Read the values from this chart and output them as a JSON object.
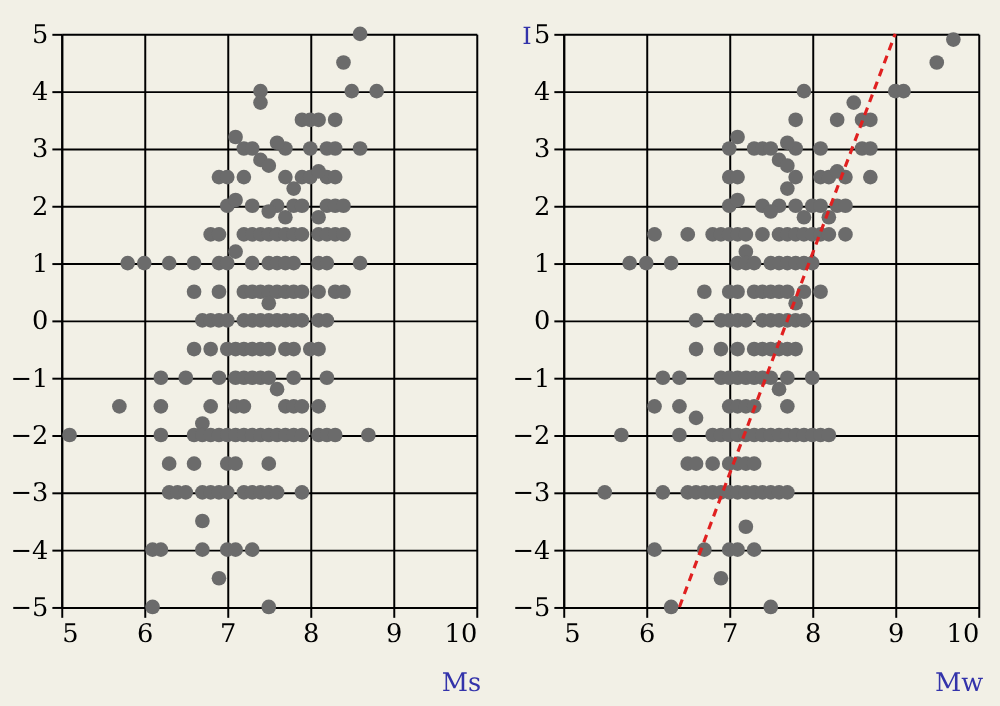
{
  "chart_data": [
    {
      "type": "scatter",
      "xlabel": "Ms",
      "xlim": [
        5,
        10
      ],
      "xticks": [
        5,
        6,
        7,
        8,
        9,
        10
      ],
      "ylim": [
        -5,
        5
      ],
      "yticks": [
        -5,
        -4,
        -3,
        -2,
        -1,
        0,
        1,
        2,
        3,
        4,
        5
      ],
      "grid": true,
      "marker": "circle",
      "series": [
        {
          "color": "#6b6b6b",
          "x": [
            8.6,
            8.4,
            7.4,
            8.5,
            8.8,
            7.4,
            7.9,
            8.0,
            8.1,
            8.3,
            7.1,
            7.2,
            7.3,
            7.7,
            8.0,
            8.2,
            8.3,
            8.6,
            7.6,
            7.4,
            7.5,
            6.9,
            7.0,
            7.2,
            7.7,
            7.9,
            8.0,
            8.2,
            8.3,
            8.1,
            7.8,
            7.0,
            7.3,
            7.6,
            7.8,
            7.9,
            8.2,
            8.3,
            8.4,
            7.1,
            7.5,
            7.7,
            8.1,
            6.8,
            6.9,
            7.2,
            7.3,
            7.4,
            7.5,
            7.6,
            7.7,
            7.8,
            7.9,
            8.1,
            8.2,
            8.3,
            8.4,
            7.1,
            5.8,
            6.0,
            6.3,
            6.6,
            6.9,
            7.0,
            7.3,
            7.5,
            7.6,
            7.7,
            7.8,
            8.1,
            8.2,
            8.6,
            6.6,
            6.9,
            7.2,
            7.3,
            7.4,
            7.5,
            7.6,
            7.7,
            7.8,
            7.9,
            8.1,
            8.3,
            8.4,
            7.5,
            6.7,
            6.8,
            6.9,
            7.0,
            7.2,
            7.3,
            7.4,
            7.5,
            7.6,
            7.7,
            7.8,
            7.9,
            8.1,
            8.2,
            6.6,
            6.8,
            7.0,
            7.1,
            7.2,
            7.3,
            7.4,
            7.5,
            7.7,
            7.8,
            8.0,
            8.1,
            6.2,
            6.5,
            6.9,
            7.1,
            7.2,
            7.3,
            7.4,
            7.5,
            7.8,
            8.2,
            7.6,
            5.7,
            6.2,
            6.8,
            7.1,
            7.2,
            7.7,
            7.8,
            7.9,
            8.1,
            6.7,
            5.1,
            6.2,
            6.6,
            6.7,
            6.8,
            6.9,
            7.0,
            7.1,
            7.2,
            7.3,
            7.4,
            7.5,
            7.6,
            7.7,
            7.8,
            7.9,
            8.1,
            8.2,
            8.3,
            8.7,
            6.3,
            6.6,
            7.0,
            7.1,
            7.5,
            6.3,
            6.4,
            6.5,
            6.7,
            6.8,
            6.9,
            7.0,
            7.2,
            7.3,
            7.4,
            7.5,
            7.6,
            7.9,
            6.7,
            6.1,
            6.2,
            6.7,
            7.0,
            7.1,
            7.3,
            6.9,
            6.1,
            7.5
          ],
          "values": [
            5,
            4.5,
            4,
            4,
            4,
            3.8,
            3.5,
            3.5,
            3.5,
            3.5,
            3.2,
            3,
            3,
            3,
            3,
            3,
            3,
            3,
            3.1,
            2.8,
            2.7,
            2.5,
            2.5,
            2.5,
            2.5,
            2.5,
            2.5,
            2.5,
            2.5,
            2.6,
            2.3,
            2,
            2,
            2,
            2,
            2,
            2,
            2,
            2,
            2.1,
            1.9,
            1.8,
            1.8,
            1.5,
            1.5,
            1.5,
            1.5,
            1.5,
            1.5,
            1.5,
            1.5,
            1.5,
            1.5,
            1.5,
            1.5,
            1.5,
            1.5,
            1.2,
            1,
            1,
            1,
            1,
            1,
            1,
            1,
            1,
            1,
            1,
            1,
            1,
            1,
            1,
            0.5,
            0.5,
            0.5,
            0.5,
            0.5,
            0.5,
            0.5,
            0.5,
            0.5,
            0.5,
            0.5,
            0.5,
            0.5,
            0.3,
            0,
            0,
            0,
            0,
            0,
            0,
            0,
            0,
            0,
            0,
            0,
            0,
            0,
            0,
            -0.5,
            -0.5,
            -0.5,
            -0.5,
            -0.5,
            -0.5,
            -0.5,
            -0.5,
            -0.5,
            -0.5,
            -0.5,
            -0.5,
            -1,
            -1,
            -1,
            -1,
            -1,
            -1,
            -1,
            -1,
            -1,
            -1,
            -1.2,
            -1.5,
            -1.5,
            -1.5,
            -1.5,
            -1.5,
            -1.5,
            -1.5,
            -1.5,
            -1.5,
            -1.8,
            -2,
            -2,
            -2,
            -2,
            -2,
            -2,
            -2,
            -2,
            -2,
            -2,
            -2,
            -2,
            -2,
            -2,
            -2,
            -2,
            -2,
            -2,
            -2,
            -2,
            -2.5,
            -2.5,
            -2.5,
            -2.5,
            -2.5,
            -3,
            -3,
            -3,
            -3,
            -3,
            -3,
            -3,
            -3,
            -3,
            -3,
            -3,
            -3,
            -3,
            -3.5,
            -4,
            -4,
            -4,
            -4,
            -4,
            -4,
            -4.5,
            -5,
            -5
          ]
        }
      ]
    },
    {
      "type": "scatter",
      "xlabel": "Mw",
      "ylabel": "I",
      "xlim": [
        5,
        10
      ],
      "xticks": [
        5,
        6,
        7,
        8,
        9,
        10
      ],
      "ylim": [
        -5,
        5
      ],
      "yticks": [
        -5,
        -4,
        -3,
        -2,
        -1,
        0,
        1,
        2,
        3,
        4,
        5
      ],
      "grid": true,
      "series": [
        {
          "color": "#6b6b6b",
          "marker": "circle",
          "x": [
            9.7,
            9.5,
            7.9,
            9.0,
            9.1,
            8.5,
            7.8,
            8.3,
            8.6,
            8.7,
            7.1,
            7.0,
            7.3,
            7.4,
            7.5,
            7.8,
            8.1,
            8.6,
            8.7,
            7.7,
            7.6,
            7.7,
            7.0,
            7.1,
            7.8,
            8.1,
            8.2,
            8.4,
            8.7,
            8.3,
            7.7,
            7.0,
            7.4,
            7.6,
            7.8,
            8.0,
            8.1,
            8.3,
            8.4,
            7.1,
            7.5,
            7.9,
            8.2,
            6.1,
            6.5,
            6.8,
            6.9,
            7.0,
            7.1,
            7.2,
            7.4,
            7.6,
            7.7,
            7.8,
            7.9,
            8.0,
            8.1,
            8.2,
            8.4,
            7.2,
            5.8,
            6.0,
            6.3,
            7.1,
            7.2,
            7.3,
            7.5,
            7.6,
            7.7,
            7.8,
            7.9,
            8.0,
            6.7,
            7.0,
            7.1,
            7.3,
            7.4,
            7.5,
            7.6,
            7.7,
            7.9,
            8.1,
            7.8,
            6.6,
            6.9,
            7.0,
            7.1,
            7.2,
            7.4,
            7.5,
            7.6,
            7.7,
            7.8,
            7.9,
            6.6,
            6.9,
            7.1,
            7.3,
            7.4,
            7.5,
            7.6,
            7.7,
            7.8,
            6.2,
            6.4,
            6.9,
            7.0,
            7.1,
            7.2,
            7.3,
            7.4,
            7.5,
            7.7,
            8.0,
            7.6,
            6.1,
            6.4,
            7.0,
            7.1,
            7.2,
            7.3,
            7.7,
            6.6,
            5.7,
            6.4,
            6.8,
            6.9,
            7.0,
            7.1,
            7.2,
            7.3,
            7.4,
            7.5,
            7.6,
            7.7,
            7.8,
            7.9,
            8.0,
            8.1,
            8.2,
            6.5,
            6.6,
            6.8,
            7.0,
            7.1,
            7.2,
            7.3,
            5.5,
            6.2,
            6.5,
            6.6,
            6.7,
            6.8,
            6.9,
            7.0,
            7.1,
            7.2,
            7.3,
            7.4,
            7.5,
            7.6,
            7.7,
            7.2,
            6.1,
            6.7,
            7.0,
            7.1,
            7.3,
            6.9,
            6.3,
            7.5
          ],
          "values": [
            4.9,
            4.5,
            4,
            4,
            4,
            3.8,
            3.5,
            3.5,
            3.5,
            3.5,
            3.2,
            3,
            3,
            3,
            3,
            3,
            3,
            3,
            3,
            3.1,
            2.8,
            2.7,
            2.5,
            2.5,
            2.5,
            2.5,
            2.5,
            2.5,
            2.5,
            2.6,
            2.3,
            2,
            2,
            2,
            2,
            2,
            2,
            2,
            2,
            2.1,
            1.9,
            1.8,
            1.8,
            1.5,
            1.5,
            1.5,
            1.5,
            1.5,
            1.5,
            1.5,
            1.5,
            1.5,
            1.5,
            1.5,
            1.5,
            1.5,
            1.5,
            1.5,
            1.5,
            1.2,
            1,
            1,
            1,
            1,
            1,
            1,
            1,
            1,
            1,
            1,
            1,
            1,
            0.5,
            0.5,
            0.5,
            0.5,
            0.5,
            0.5,
            0.5,
            0.5,
            0.5,
            0.5,
            0.3,
            0,
            0,
            0,
            0,
            0,
            0,
            0,
            0,
            0,
            0,
            0,
            -0.5,
            -0.5,
            -0.5,
            -0.5,
            -0.5,
            -0.5,
            -0.5,
            -0.5,
            -0.5,
            -1,
            -1,
            -1,
            -1,
            -1,
            -1,
            -1,
            -1,
            -1,
            -1,
            -1,
            -1.2,
            -1.5,
            -1.5,
            -1.5,
            -1.5,
            -1.5,
            -1.5,
            -1.5,
            -1.7,
            -2,
            -2,
            -2,
            -2,
            -2,
            -2,
            -2,
            -2,
            -2,
            -2,
            -2,
            -2,
            -2,
            -2,
            -2,
            -2,
            -2,
            -2.5,
            -2.5,
            -2.5,
            -2.5,
            -2.5,
            -2.5,
            -2.5,
            -3,
            -3,
            -3,
            -3,
            -3,
            -3,
            -3,
            -3,
            -3,
            -3,
            -3,
            -3,
            -3,
            -3,
            -3,
            -3.6,
            -4,
            -4,
            -4,
            -4,
            -4,
            -4.5,
            -5,
            -5
          ]
        },
        {
          "type": "line",
          "color": "#e02020",
          "line_style": "dashed",
          "x": [
            6.4,
            9.0
          ],
          "values": [
            -5,
            5
          ]
        }
      ]
    }
  ]
}
